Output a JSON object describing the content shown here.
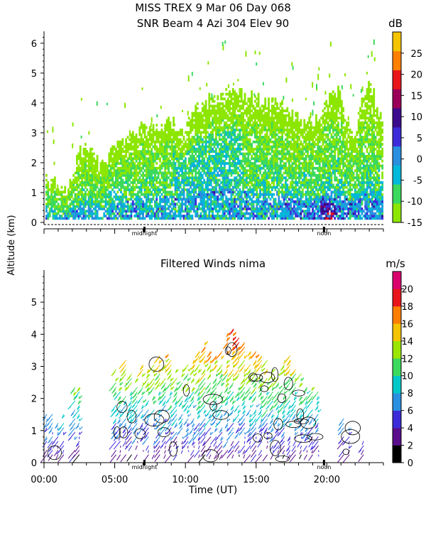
{
  "chart_data": [
    {
      "type": "heatmap",
      "title_line1": "MISS TREX    9 Mar 06 Day 068",
      "title_line2": "SNR Beam 4 Azi 304 Elev 90",
      "colorbar_unit": "dB",
      "colorbar_ticks": [
        "-15",
        "-10",
        "-5",
        "0",
        "5",
        "10",
        "15",
        "20",
        "25"
      ],
      "colorbar_range": [
        -15,
        30
      ],
      "colorbar_colors": [
        "#8ce600",
        "#3bd95e",
        "#00b8d9",
        "#2a8fdf",
        "#3d2bd9",
        "#3c0a8c",
        "#9a005a",
        "#e8151b",
        "#ff8000",
        "#f5c400"
      ],
      "ylim": [
        0,
        6.4
      ],
      "yticks": [
        "0",
        "1",
        "2",
        "3",
        "4",
        "5",
        "6"
      ],
      "xlim": [
        0,
        24
      ],
      "axis_markers": [
        "midnight",
        "noon"
      ],
      "midnight_hour": 7.1,
      "noon_hour": 19.8,
      "envelope": [
        [
          0.1,
          1.4
        ],
        [
          0.8,
          1.3
        ],
        [
          1.5,
          0.9
        ],
        [
          2.0,
          1.7
        ],
        [
          2.6,
          2.4
        ],
        [
          3.2,
          2.5
        ],
        [
          4.0,
          1.8
        ],
        [
          5.0,
          2.5
        ],
        [
          6.0,
          2.9
        ],
        [
          7.0,
          3.1
        ],
        [
          8.0,
          3.2
        ],
        [
          9.0,
          3.3
        ],
        [
          10.0,
          3.2
        ],
        [
          10.6,
          3.7
        ],
        [
          11.2,
          4.0
        ],
        [
          12.0,
          4.2
        ],
        [
          13.0,
          4.3
        ],
        [
          14.0,
          4.3
        ],
        [
          15.0,
          4.1
        ],
        [
          16.0,
          4.0
        ],
        [
          17.0,
          3.8
        ],
        [
          18.0,
          3.4
        ],
        [
          19.0,
          3.3
        ],
        [
          19.8,
          3.8
        ],
        [
          20.4,
          4.4
        ],
        [
          20.9,
          4.3
        ],
        [
          21.3,
          3.5
        ],
        [
          21.8,
          2.6
        ],
        [
          22.4,
          3.9
        ],
        [
          22.9,
          4.7
        ],
        [
          23.4,
          4.1
        ],
        [
          23.8,
          3.3
        ]
      ]
    },
    {
      "type": "barbs",
      "title": "Filtered Winds nima",
      "colorbar_unit": "m/s",
      "colorbar_ticks": [
        "0",
        "2",
        "4",
        "6",
        "8",
        "10",
        "12",
        "14",
        "16",
        "18",
        "20"
      ],
      "colorbar_range": [
        0,
        22
      ],
      "ylim": [
        0,
        6
      ],
      "yticks": [
        "0",
        "1",
        "2",
        "3",
        "4",
        "5"
      ],
      "xlim": [
        0,
        24
      ],
      "xticks": [
        "00:00",
        "05:00",
        "10:00",
        "15:00",
        "20:00"
      ],
      "xlabel": "Time (UT)",
      "axis_markers": [
        "midnight",
        "noon"
      ],
      "columns": [
        {
          "t": 0.2,
          "top": 1.6
        },
        {
          "t": 0.6,
          "top": 1.7
        },
        {
          "t": 1.0,
          "top": 1.4
        },
        {
          "t": 1.4,
          "top": 1.6
        },
        {
          "t": 2.2,
          "top": 2.6
        },
        {
          "t": 2.5,
          "top": 2.4
        },
        {
          "t": 5.1,
          "top": 3.0
        },
        {
          "t": 5.4,
          "top": 2.7
        },
        {
          "t": 5.8,
          "top": 3.2
        },
        {
          "t": 6.2,
          "top": 3.0
        },
        {
          "t": 6.6,
          "top": 2.9
        },
        {
          "t": 7.0,
          "top": 3.1
        },
        {
          "t": 7.4,
          "top": 3.0
        },
        {
          "t": 7.8,
          "top": 3.2
        },
        {
          "t": 8.2,
          "top": 3.4
        },
        {
          "t": 8.6,
          "top": 3.6
        },
        {
          "t": 9.0,
          "top": 3.3
        },
        {
          "t": 9.4,
          "top": 3.1
        },
        {
          "t": 9.8,
          "top": 3.0
        },
        {
          "t": 10.2,
          "top": 3.2
        },
        {
          "t": 10.6,
          "top": 3.4
        },
        {
          "t": 11.0,
          "top": 3.7
        },
        {
          "t": 11.4,
          "top": 3.8
        },
        {
          "t": 11.8,
          "top": 3.6
        },
        {
          "t": 12.2,
          "top": 3.4
        },
        {
          "t": 12.6,
          "top": 3.5
        },
        {
          "t": 13.0,
          "top": 4.1
        },
        {
          "t": 13.4,
          "top": 4.2
        },
        {
          "t": 13.8,
          "top": 4.0
        },
        {
          "t": 14.2,
          "top": 3.8
        },
        {
          "t": 14.6,
          "top": 3.7
        },
        {
          "t": 15.0,
          "top": 3.6
        },
        {
          "t": 15.4,
          "top": 3.4
        },
        {
          "t": 15.8,
          "top": 3.2
        },
        {
          "t": 16.2,
          "top": 3.0
        },
        {
          "t": 16.6,
          "top": 2.9
        },
        {
          "t": 17.0,
          "top": 3.2
        },
        {
          "t": 17.4,
          "top": 3.4
        },
        {
          "t": 17.8,
          "top": 3.0
        },
        {
          "t": 18.2,
          "top": 2.8
        },
        {
          "t": 18.6,
          "top": 2.6
        },
        {
          "t": 19.0,
          "top": 2.4
        },
        {
          "t": 19.4,
          "top": 2.3
        },
        {
          "t": 21.2,
          "top": 1.4
        },
        {
          "t": 21.6,
          "top": 1.1
        },
        {
          "t": 22.6,
          "top": 0.7
        }
      ]
    }
  ]
}
